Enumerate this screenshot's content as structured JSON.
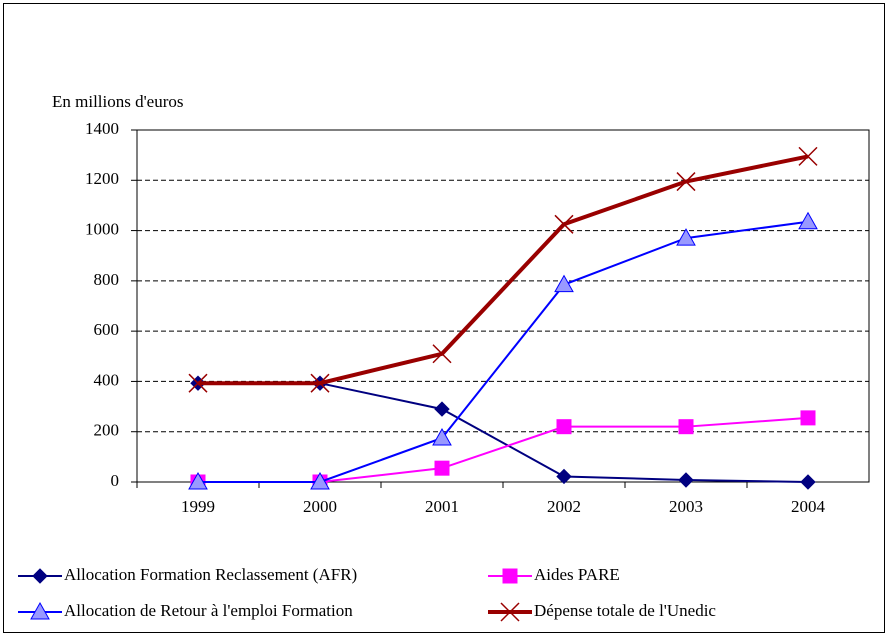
{
  "chart_data": {
    "type": "line",
    "y_label": "En millions d'euros",
    "categories": [
      "1999",
      "2000",
      "2001",
      "2002",
      "2003",
      "2004"
    ],
    "series": [
      {
        "name": "Allocation Formation Reclassement (AFR)",
        "color": "#000080",
        "marker": "diamond",
        "marker_color": "#000080",
        "line_width": 2,
        "values": [
          393,
          393,
          290,
          22,
          8,
          0
        ]
      },
      {
        "name": "Aides PARE",
        "color": "#ff00ff",
        "marker": "square",
        "marker_color": "#ff00ff",
        "line_width": 2,
        "values": [
          0,
          0,
          55,
          220,
          220,
          255
        ]
      },
      {
        "name": "Allocation de Retour à l'emploi Formation",
        "color": "#0000ff",
        "marker": "triangle",
        "marker_color": "#9999ff",
        "line_width": 2,
        "values": [
          0,
          0,
          175,
          785,
          970,
          1035
        ]
      },
      {
        "name": "Dépense totale de l'Unedic",
        "color": "#990000",
        "marker": "x",
        "marker_color": "#990000",
        "line_width": 4,
        "values": [
          393,
          393,
          510,
          1025,
          1195,
          1295
        ]
      }
    ],
    "ylim": [
      0,
      1400
    ],
    "yticks": [
      0,
      200,
      400,
      600,
      800,
      1000,
      1200,
      1400
    ],
    "grid": true
  }
}
